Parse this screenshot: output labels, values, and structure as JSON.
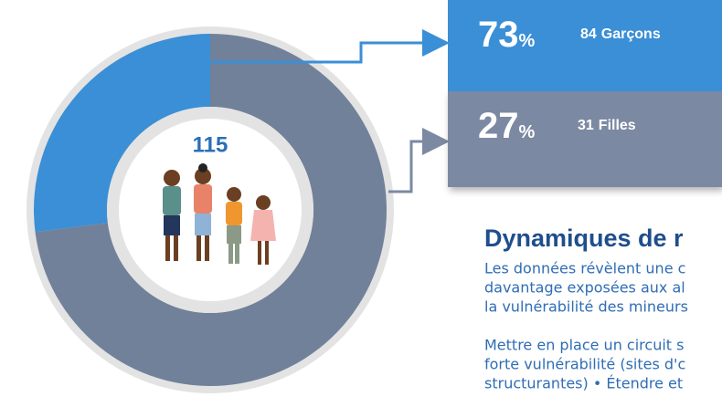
{
  "chart_data": {
    "type": "donut",
    "total": 115,
    "segments": [
      {
        "percent": 73,
        "unit_symbol": "%",
        "count": 84,
        "label": "Garçons",
        "box_color": "#3a8fd6",
        "ring_color": "#718199"
      },
      {
        "percent": 27,
        "unit_symbol": "%",
        "count": 31,
        "label": "Filles",
        "box_color": "#7b89a2",
        "ring_color": "#3a8fd6"
      }
    ]
  },
  "section": {
    "heading": "Dynamiques de r",
    "lines": [
      "Les données révèlent une c",
      "davantage exposées aux al",
      "la vulnérabilité des mineurs",
      "Mettre en place un circuit s",
      "forte vulnérabilité (sites d'c",
      "structurantes) • Étendre et"
    ]
  }
}
